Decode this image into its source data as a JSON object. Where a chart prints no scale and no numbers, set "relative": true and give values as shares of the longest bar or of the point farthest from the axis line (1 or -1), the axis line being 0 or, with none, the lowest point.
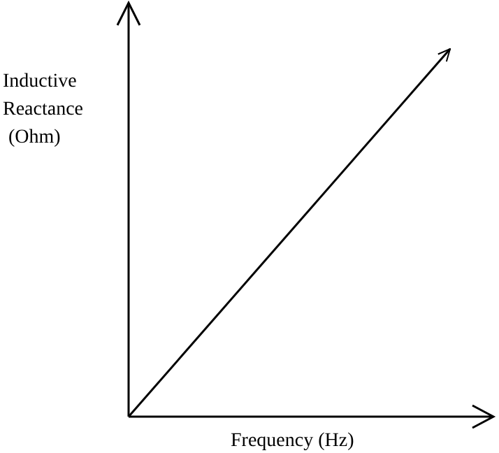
{
  "chart_data": {
    "type": "line",
    "relative": true,
    "xlabel": "Frequency (Hz)",
    "ylabel": "Inductive Reactance (Ohm)",
    "categories": [
      null,
      null
    ],
    "series": [
      {
        "color": "#000000",
        "values": [
          0,
          1
        ]
      }
    ]
  }
}
